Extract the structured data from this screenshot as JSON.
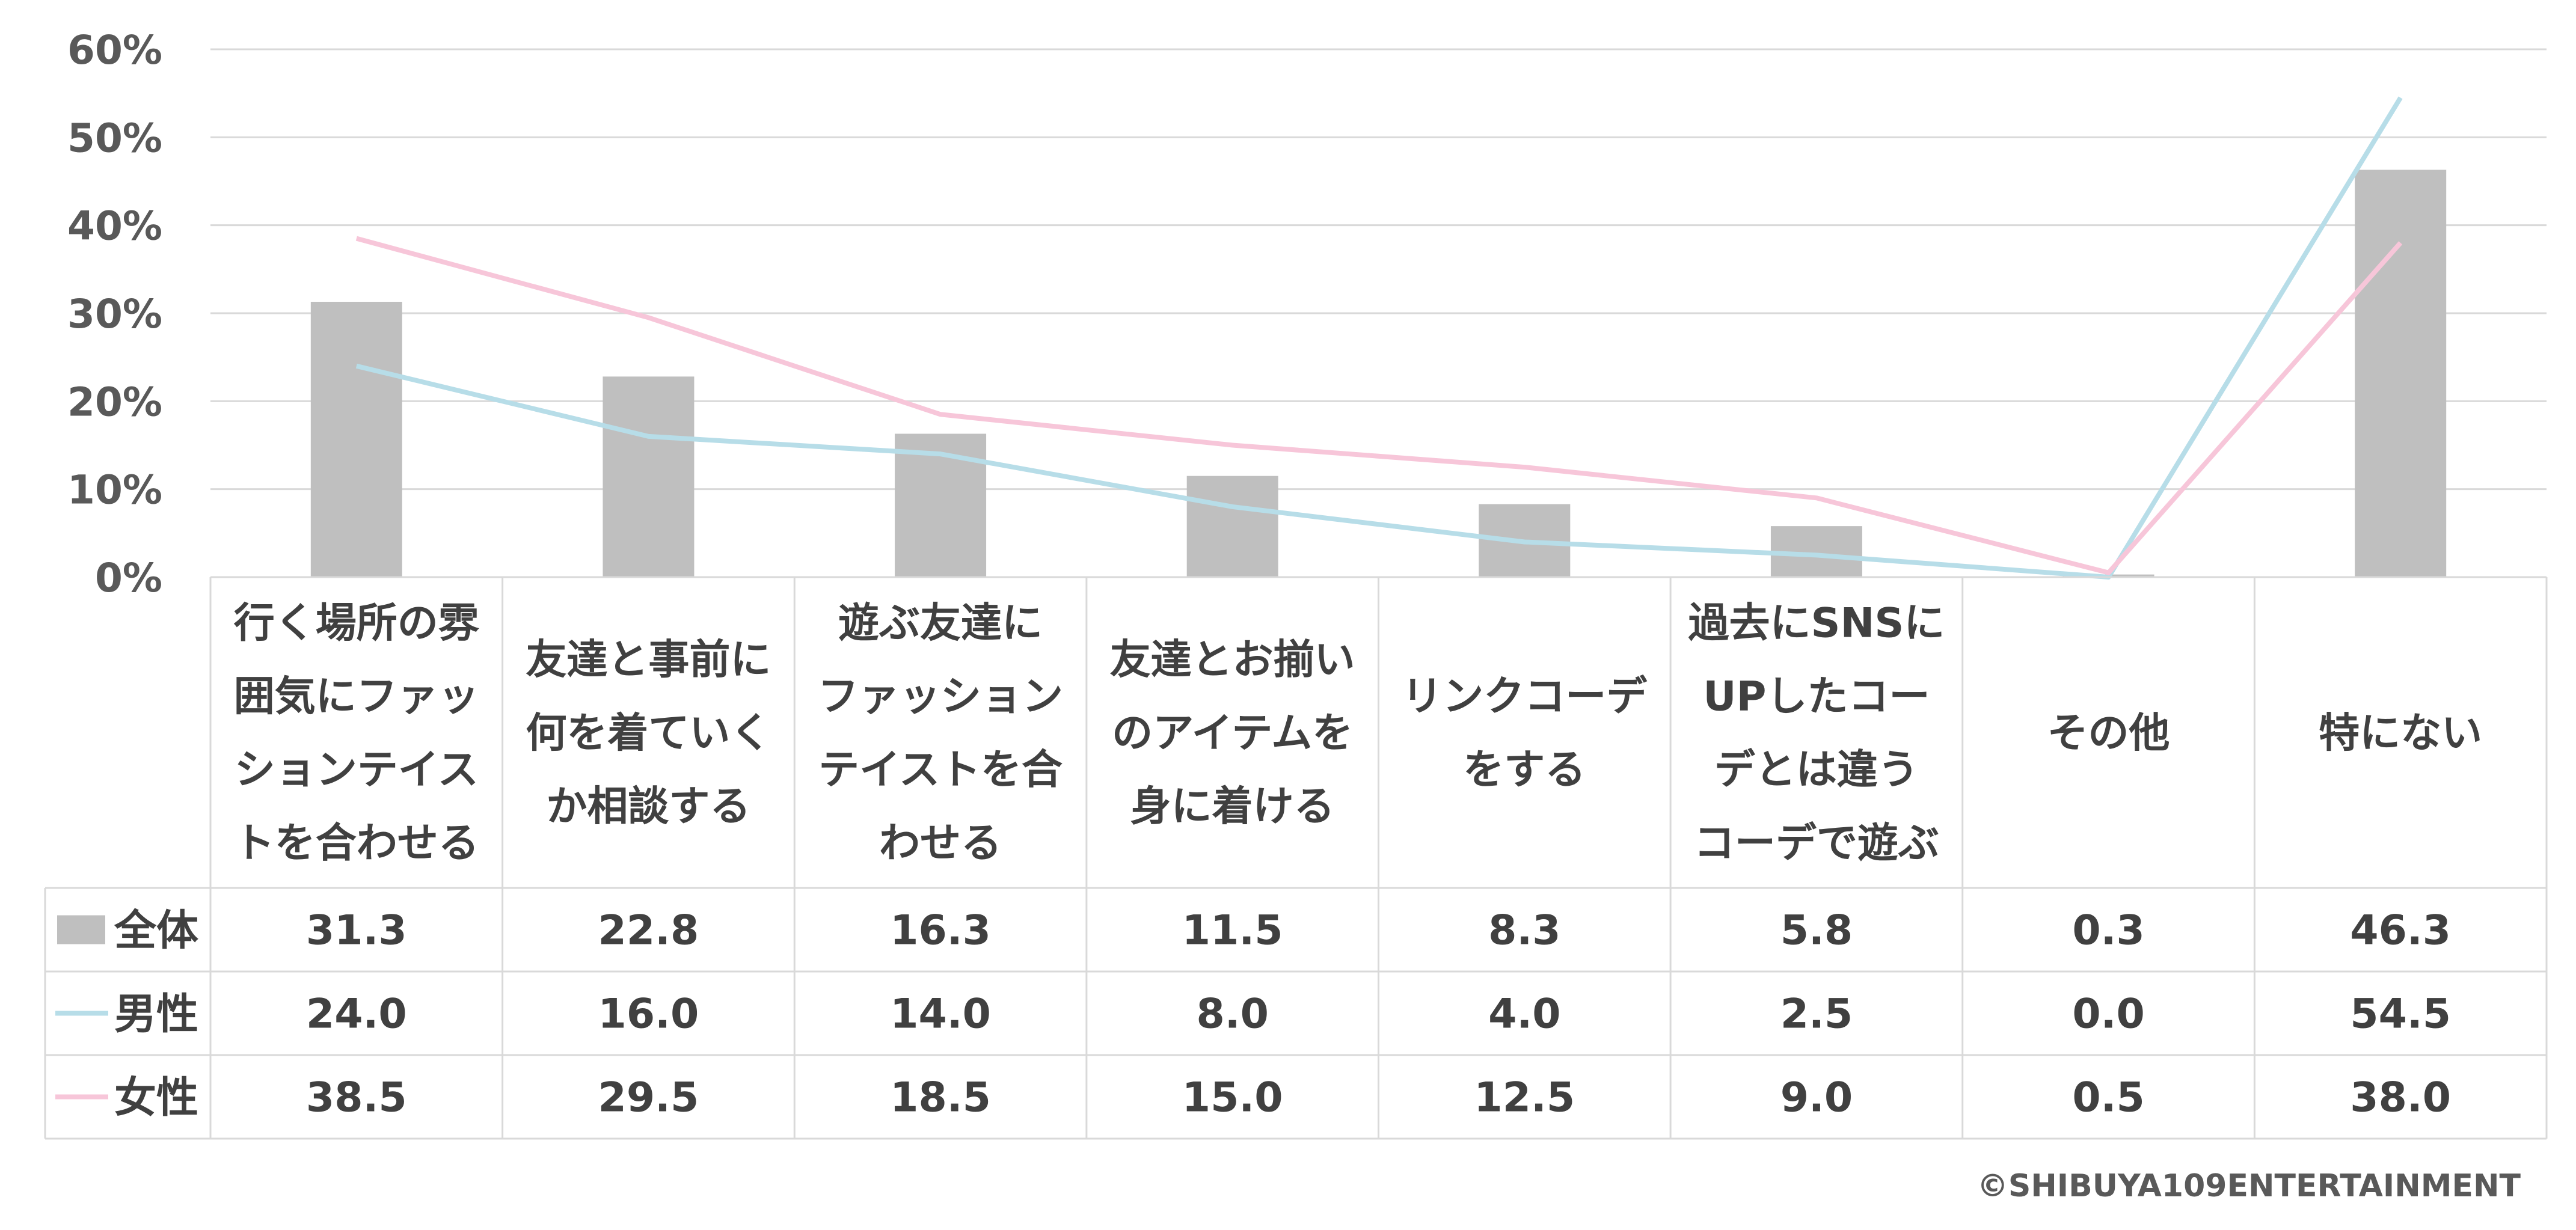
{
  "chart_data": {
    "type": "bar",
    "categories": [
      [
        "行く場所の雰",
        "囲気にファッ",
        "ションテイス",
        "トを合わせる"
      ],
      [
        "友達と事前に",
        "何を着ていく",
        "か相談する"
      ],
      [
        "遊ぶ友達に",
        "ファッション",
        "テイストを合",
        "わせる"
      ],
      [
        "友達とお揃い",
        "のアイテムを",
        "身に着ける"
      ],
      [
        "リンクコーデ",
        "をする"
      ],
      [
        "過去にSNSに",
        "UPしたコー",
        "デとは違う",
        "コーデで遊ぶ"
      ],
      [
        "その他"
      ],
      [
        "特にない"
      ]
    ],
    "ylim": [
      0,
      60
    ],
    "yticks": [
      "0%",
      "10%",
      "20%",
      "30%",
      "40%",
      "50%",
      "60%"
    ],
    "grid": true,
    "series": [
      {
        "name": "全体",
        "kind": "bar",
        "color": "#bfbfbf",
        "values": [
          31.3,
          22.8,
          16.3,
          11.5,
          8.3,
          5.8,
          0.3,
          46.3
        ],
        "labels": [
          "31.3",
          "22.8",
          "16.3",
          "11.5",
          "8.3",
          "5.8",
          "0.3",
          "46.3"
        ]
      },
      {
        "name": "男性",
        "kind": "line",
        "color": "#b7dde8",
        "values": [
          24.0,
          16.0,
          14.0,
          8.0,
          4.0,
          2.5,
          0.0,
          54.5
        ],
        "labels": [
          "24.0",
          "16.0",
          "14.0",
          "8.0",
          "4.0",
          "2.5",
          "0.0",
          "54.5"
        ]
      },
      {
        "name": "女性",
        "kind": "line",
        "color": "#f7c6d9",
        "values": [
          38.5,
          29.5,
          18.5,
          15.0,
          12.5,
          9.0,
          0.5,
          38.0
        ],
        "labels": [
          "38.5",
          "29.5",
          "18.5",
          "15.0",
          "12.5",
          "9.0",
          "0.5",
          "38.0"
        ]
      }
    ]
  },
  "credit": "©SHIBUYA109ENTERTAINMENT"
}
